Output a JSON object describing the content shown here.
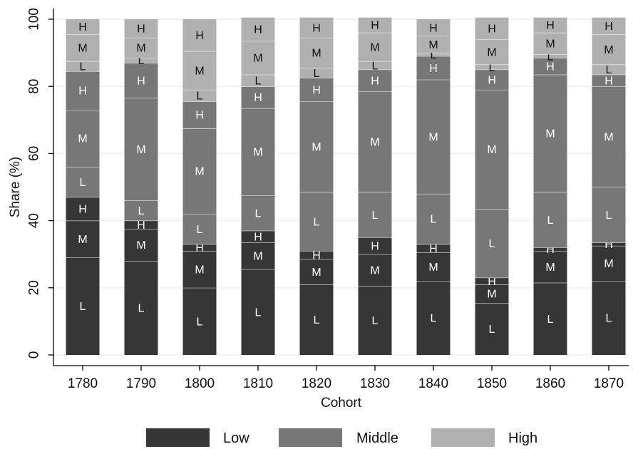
{
  "colors": {
    "low": "#363636",
    "middle": "#777777",
    "high": "#b0b0b0",
    "grid": "#eaf2f3",
    "divider": "#ffffff"
  },
  "chart_data": {
    "type": "bar",
    "stacked": true,
    "xlabel": "Cohort",
    "ylabel": "Share (%)",
    "ylim": [
      0,
      100
    ],
    "yticks": [
      0,
      20,
      40,
      60,
      80,
      100
    ],
    "categories": [
      "1780",
      "1790",
      "1800",
      "1810",
      "1820",
      "1830",
      "1840",
      "1850",
      "1860",
      "1870"
    ],
    "grid": true,
    "legend": {
      "placement": "bottom",
      "entries": [
        {
          "group": "low",
          "label": "Low"
        },
        {
          "group": "middle",
          "label": "Middle"
        },
        {
          "group": "high",
          "label": "High"
        }
      ]
    },
    "segment_labels": [
      "L",
      "M",
      "H"
    ],
    "series": [
      {
        "group": "low",
        "segment": "L",
        "values": [
          29,
          28,
          20,
          25.5,
          21,
          20.5,
          22,
          15.5,
          21.5,
          22
        ]
      },
      {
        "group": "low",
        "segment": "M",
        "values": [
          11,
          9.5,
          11,
          8,
          7.5,
          9.5,
          8.5,
          5.5,
          9.5,
          10.5
        ]
      },
      {
        "group": "low",
        "segment": "H",
        "values": [
          7,
          2.5,
          2,
          3.5,
          2.5,
          5,
          2.5,
          2,
          1,
          1
        ]
      },
      {
        "group": "middle",
        "segment": "L",
        "values": [
          9,
          6,
          9,
          10.5,
          17.5,
          13.5,
          15,
          20.5,
          16.5,
          16.5
        ]
      },
      {
        "group": "middle",
        "segment": "M",
        "values": [
          17,
          30.5,
          25.5,
          26,
          27,
          30,
          34,
          35.5,
          35,
          30
        ]
      },
      {
        "group": "middle",
        "segment": "H",
        "values": [
          11.5,
          10.5,
          8,
          6.5,
          7,
          6.5,
          7,
          6,
          5,
          3.5
        ]
      },
      {
        "group": "high",
        "segment": "L",
        "values": [
          3,
          1.5,
          3.5,
          3.5,
          3,
          2.5,
          1,
          1.5,
          1,
          3
        ]
      },
      {
        "group": "high",
        "segment": "M",
        "values": [
          8,
          6,
          11.5,
          10,
          9,
          8.5,
          5,
          7.5,
          6.5,
          9
        ]
      },
      {
        "group": "high",
        "segment": "H",
        "values": [
          4.5,
          5.5,
          9.5,
          7,
          6,
          4.5,
          5,
          6.5,
          4.5,
          5
        ]
      }
    ]
  }
}
